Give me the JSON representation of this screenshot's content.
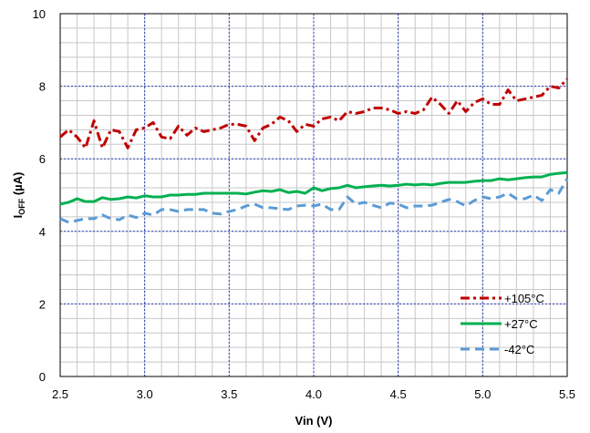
{
  "chart_data": {
    "type": "line",
    "xlabel": "Vin (V)",
    "ylabel": {
      "main": "I",
      "sub": "OFF",
      "unit": " (µA)"
    },
    "xlim": [
      2.5,
      5.5
    ],
    "ylim": [
      0,
      10
    ],
    "x_ticks": [
      "2.5",
      "3.0",
      "3.5",
      "4.0",
      "4.5",
      "5.0",
      "5.5"
    ],
    "y_ticks": [
      "0",
      "2",
      "4",
      "6",
      "8",
      "10"
    ],
    "grid": {
      "major": true,
      "minor": true
    },
    "legend_position": "bottom-right",
    "x": [
      2.5,
      2.55,
      2.6,
      2.65,
      2.7,
      2.75,
      2.8,
      2.85,
      2.9,
      2.95,
      3.0,
      3.05,
      3.1,
      3.15,
      3.2,
      3.25,
      3.3,
      3.35,
      3.4,
      3.45,
      3.5,
      3.55,
      3.6,
      3.65,
      3.7,
      3.75,
      3.8,
      3.85,
      3.9,
      3.95,
      4.0,
      4.05,
      4.1,
      4.15,
      4.2,
      4.25,
      4.3,
      4.35,
      4.4,
      4.45,
      4.5,
      4.55,
      4.6,
      4.65,
      4.7,
      4.75,
      4.8,
      4.85,
      4.9,
      4.95,
      5.0,
      5.05,
      5.1,
      5.15,
      5.2,
      5.25,
      5.3,
      5.35,
      5.4,
      5.45,
      5.5
    ],
    "series": [
      {
        "name": "+105°C",
        "color": "#c00000",
        "dash": "dash-dot",
        "values": [
          6.6,
          6.8,
          6.6,
          6.3,
          7.05,
          6.3,
          6.8,
          6.75,
          6.3,
          6.8,
          6.85,
          7.0,
          6.6,
          6.55,
          6.9,
          6.65,
          6.85,
          6.75,
          6.8,
          6.85,
          6.95,
          6.95,
          6.9,
          6.5,
          6.85,
          6.95,
          7.15,
          7.05,
          6.75,
          6.95,
          6.9,
          7.1,
          7.15,
          7.05,
          7.3,
          7.25,
          7.3,
          7.4,
          7.4,
          7.35,
          7.25,
          7.3,
          7.25,
          7.35,
          7.7,
          7.5,
          7.25,
          7.6,
          7.3,
          7.55,
          7.65,
          7.5,
          7.5,
          7.9,
          7.6,
          7.65,
          7.7,
          7.75,
          8.0,
          7.95,
          8.2
        ]
      },
      {
        "name": "+27°C",
        "color": "#00b050",
        "dash": "solid",
        "values": [
          4.75,
          4.8,
          4.9,
          4.82,
          4.82,
          4.93,
          4.88,
          4.9,
          4.95,
          4.92,
          4.98,
          4.95,
          4.95,
          5.0,
          5.0,
          5.02,
          5.02,
          5.05,
          5.05,
          5.05,
          5.05,
          5.05,
          5.03,
          5.08,
          5.12,
          5.1,
          5.15,
          5.07,
          5.1,
          5.05,
          5.2,
          5.12,
          5.18,
          5.2,
          5.27,
          5.2,
          5.23,
          5.25,
          5.27,
          5.25,
          5.27,
          5.3,
          5.28,
          5.3,
          5.28,
          5.32,
          5.35,
          5.35,
          5.35,
          5.38,
          5.4,
          5.4,
          5.45,
          5.42,
          5.45,
          5.48,
          5.5,
          5.5,
          5.57,
          5.6,
          5.62
        ]
      },
      {
        "name": "-42°C",
        "color": "#5b9bd5",
        "dash": "dashed",
        "values": [
          4.35,
          4.25,
          4.3,
          4.35,
          4.35,
          4.45,
          4.35,
          4.32,
          4.45,
          4.38,
          4.5,
          4.45,
          4.6,
          4.6,
          4.55,
          4.6,
          4.6,
          4.6,
          4.5,
          4.48,
          4.55,
          4.6,
          4.7,
          4.75,
          4.65,
          4.65,
          4.62,
          4.6,
          4.7,
          4.72,
          4.7,
          4.75,
          4.6,
          4.6,
          4.95,
          4.75,
          4.8,
          4.72,
          4.65,
          4.78,
          4.75,
          4.65,
          4.7,
          4.7,
          4.72,
          4.8,
          4.88,
          4.82,
          4.7,
          4.85,
          4.95,
          4.9,
          4.95,
          5.05,
          4.9,
          4.9,
          5.0,
          4.85,
          5.15,
          5.05,
          5.45
        ]
      }
    ]
  }
}
